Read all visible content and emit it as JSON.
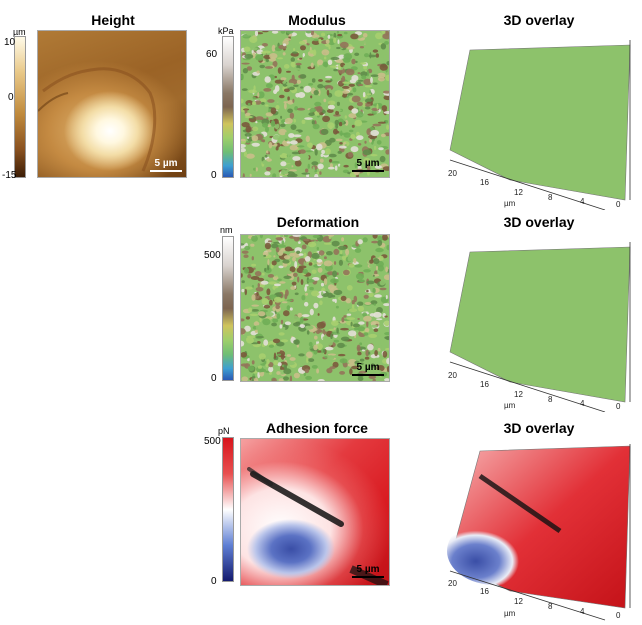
{
  "height": {
    "title": "Height",
    "unit": "µm",
    "ticks": [
      "10",
      "0",
      "-15"
    ],
    "scalebar": "5 µm"
  },
  "modulus": {
    "title": "Modulus",
    "unit": "kPa",
    "ticks": [
      "60",
      "0"
    ],
    "scalebar": "5 µm"
  },
  "deformation": {
    "title": "Deformation",
    "unit": "nm",
    "ticks": [
      "500",
      "0"
    ],
    "scalebar": "5 µm"
  },
  "adhesion": {
    "title": "Adhesion force",
    "unit": "pN",
    "ticks": [
      "500",
      "0"
    ],
    "scalebar": "5 µm"
  },
  "overlay_title": "3D overlay",
  "overlay_axis": {
    "x_ticks": [
      "20",
      "16",
      "12",
      "8",
      "4"
    ],
    "x_label": "µm",
    "y_tick": "0"
  },
  "colors": {
    "height_light": "#fdfbe6",
    "height_dark": "#5a2f0a",
    "mech_green": "#8dc26b",
    "mech_brown": "#7a5a3c",
    "adh_red": "#e0242a",
    "adh_blue": "#3f54a6"
  }
}
